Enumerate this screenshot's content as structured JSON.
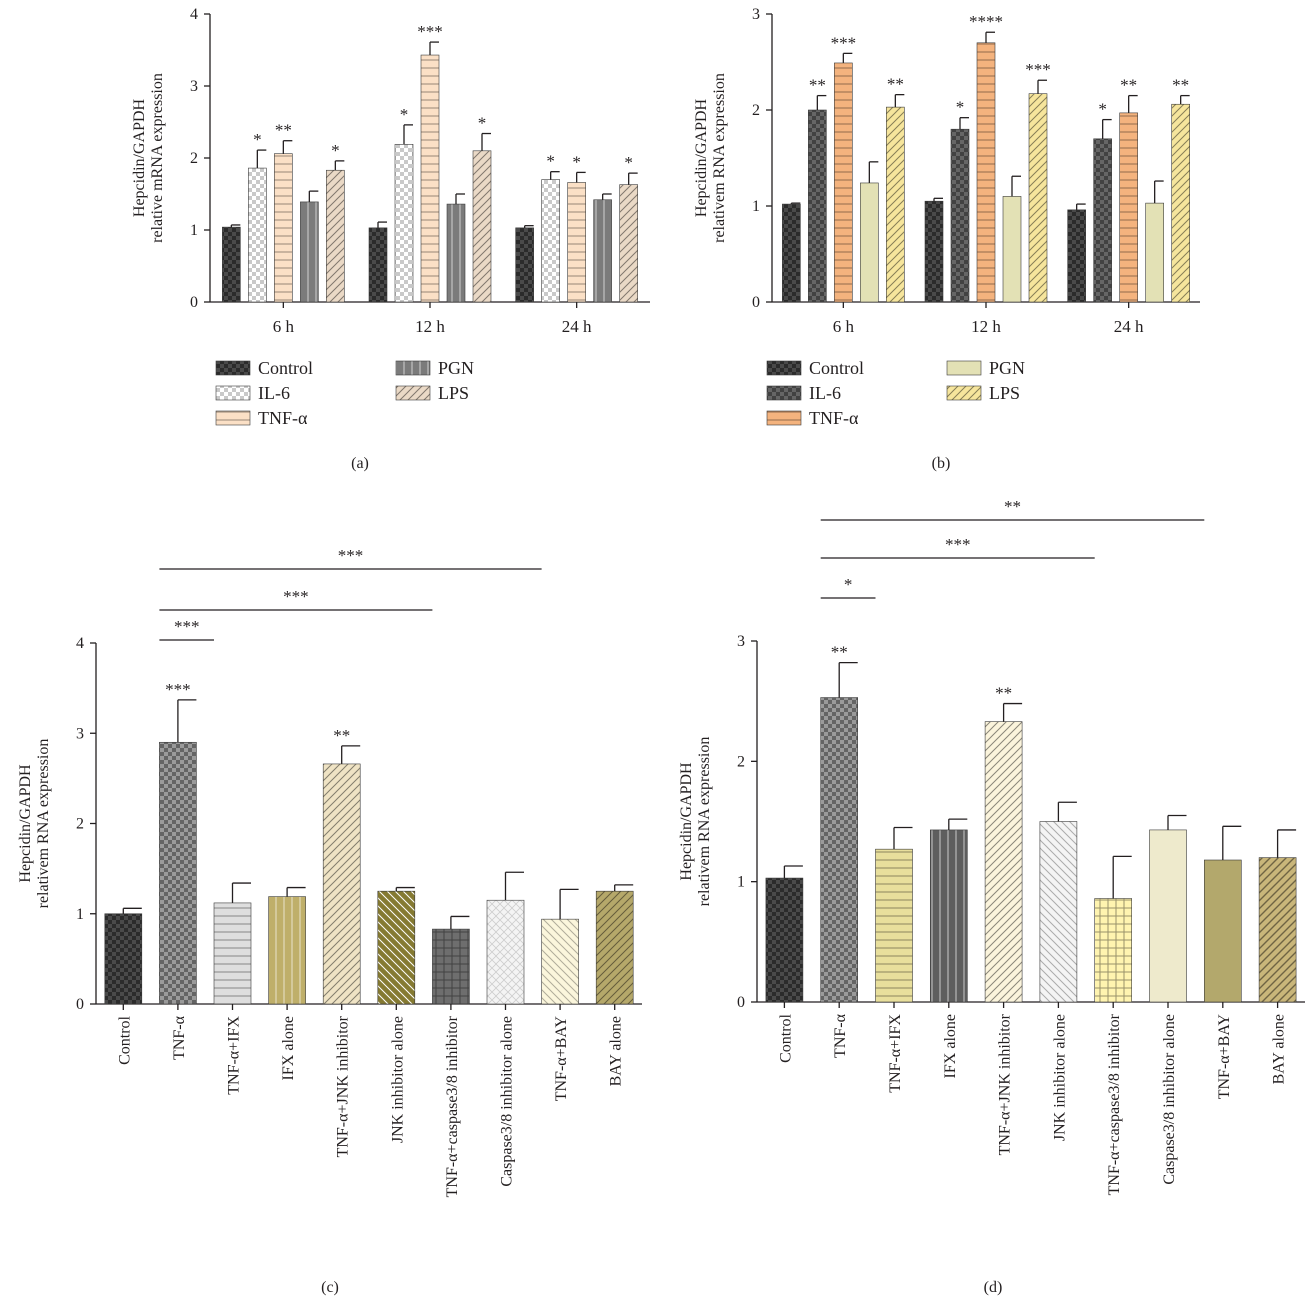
{
  "figure": {
    "panel_labels": [
      "(a)",
      "(b)",
      "(c)",
      "(d)"
    ]
  },
  "chart_data": [
    {
      "panel": "(a)",
      "type": "bar",
      "ylabel": "Hepcidin/GAPDH\nrelative mRNA expression",
      "ylim": [
        0,
        4
      ],
      "yticks": [
        "0",
        "1",
        "2",
        "3",
        "4"
      ],
      "categories": [
        "6 h",
        "12 h",
        "24 h"
      ],
      "legend_position": "bottom",
      "series": [
        {
          "name": "Control",
          "values": [
            1.04,
            1.03,
            1.03
          ],
          "errors": [
            0.03,
            0.08,
            0.03
          ],
          "sig": [
            "",
            "",
            ""
          ],
          "color": "#2b2b2b",
          "pattern": "check-dark"
        },
        {
          "name": "IL-6",
          "values": [
            1.86,
            2.19,
            1.7
          ],
          "errors": [
            0.25,
            0.27,
            0.11
          ],
          "sig": [
            "*",
            "*",
            "*"
          ],
          "color": "#c9c9c9",
          "pattern": "check-light"
        },
        {
          "name": "TNF-α",
          "values": [
            2.06,
            3.43,
            1.66
          ],
          "errors": [
            0.18,
            0.18,
            0.14
          ],
          "sig": [
            "**",
            "***",
            "*"
          ],
          "color": "#fbe0c6",
          "pattern": "hlines"
        },
        {
          "name": "PGN",
          "values": [
            1.39,
            1.36,
            1.42
          ],
          "errors": [
            0.15,
            0.14,
            0.08
          ],
          "sig": [
            "",
            "",
            ""
          ],
          "color": "#7b7b7b",
          "pattern": "vlines"
        },
        {
          "name": "LPS",
          "values": [
            1.83,
            2.1,
            1.63
          ],
          "errors": [
            0.13,
            0.24,
            0.16
          ],
          "sig": [
            "*",
            "*",
            "*"
          ],
          "color": "#ead9c6",
          "pattern": "diag"
        }
      ]
    },
    {
      "panel": "(b)",
      "type": "bar",
      "ylabel": "Hepcidin/GAPDH\nrelativem RNA expression",
      "ylim": [
        0,
        3
      ],
      "yticks": [
        "0",
        "1",
        "2",
        "3"
      ],
      "categories": [
        "6 h",
        "12 h",
        "24 h"
      ],
      "legend_position": "bottom",
      "series": [
        {
          "name": "Control",
          "values": [
            1.02,
            1.05,
            0.96
          ],
          "errors": [
            0.01,
            0.03,
            0.06
          ],
          "sig": [
            "",
            "",
            ""
          ],
          "color": "#2b2b2b",
          "pattern": "check-dark"
        },
        {
          "name": "IL-6",
          "values": [
            2.0,
            1.8,
            1.7
          ],
          "errors": [
            0.15,
            0.12,
            0.2
          ],
          "sig": [
            "**",
            "*",
            "*"
          ],
          "color": "#666666",
          "pattern": "check-mid"
        },
        {
          "name": "TNF-α",
          "values": [
            2.49,
            2.7,
            1.97
          ],
          "errors": [
            0.1,
            0.11,
            0.18
          ],
          "sig": [
            "***",
            "****",
            "**"
          ],
          "color": "#f4b37e",
          "pattern": "hlines"
        },
        {
          "name": "PGN",
          "values": [
            1.24,
            1.1,
            1.03
          ],
          "errors": [
            0.22,
            0.21,
            0.23
          ],
          "sig": [
            "",
            "",
            ""
          ],
          "color": "#e3e1b5",
          "pattern": "solid"
        },
        {
          "name": "LPS",
          "values": [
            2.03,
            2.17,
            2.06
          ],
          "errors": [
            0.13,
            0.14,
            0.09
          ],
          "sig": [
            "**",
            "***",
            "**"
          ],
          "color": "#f6e59c",
          "pattern": "diag"
        }
      ]
    },
    {
      "panel": "(c)",
      "type": "bar",
      "ylabel": "Hepcidin/GAPDH\nrelativem RNA expression",
      "ylim": [
        0,
        4
      ],
      "yticks": [
        "0",
        "1",
        "2",
        "3",
        "4"
      ],
      "categories": [
        "Control",
        "TNF-α",
        "TNF-α+IFX",
        "IFX alone",
        "TNF-α+JNK inhibitor",
        "JNK inhibitor alone",
        "TNF-α+caspase3/8 inhibitor",
        "Caspase3/8 inhibitor alone",
        "TNF-α+BAY",
        "BAY alone"
      ],
      "values": [
        1.0,
        2.9,
        1.12,
        1.19,
        2.66,
        1.25,
        0.83,
        1.15,
        0.94,
        1.25
      ],
      "errors": [
        0.06,
        0.47,
        0.22,
        0.1,
        0.2,
        0.04,
        0.14,
        0.31,
        0.33,
        0.07
      ],
      "sig": [
        "",
        "***",
        "",
        "",
        "**",
        "",
        "",
        "",
        "",
        ""
      ],
      "bar_colors": [
        "#2b2b2b",
        "#9a9a9a",
        "#dedede",
        "#bfaf6a",
        "#efe3c4",
        "#857a32",
        "#6e6e6e",
        "#f4f4f4",
        "#fbf6dc",
        "#b5a86a"
      ],
      "bar_patterns": [
        "check-dark",
        "check-mid",
        "hlines",
        "vlines",
        "diag",
        "diag-back",
        "grid",
        "diamond",
        "diag-back-light",
        "diag"
      ],
      "comparisons": [
        {
          "from": 1,
          "to": 2,
          "label": "***"
        },
        {
          "from": 1,
          "to": 6,
          "label": "***"
        },
        {
          "from": 1,
          "to": 8,
          "label": "***"
        }
      ]
    },
    {
      "panel": "(d)",
      "type": "bar",
      "ylabel": "Hepcidin/GAPDH\nrelativem RNA expression",
      "ylim": [
        0,
        3
      ],
      "yticks": [
        "0",
        "1",
        "2",
        "3"
      ],
      "categories": [
        "Control",
        "TNF-α",
        "TNF-α+IFX",
        "IFX alone",
        "TNF-α+JNK inhibitor",
        "JNK inhibitor alone",
        "TNF-α+caspase3/8 inhibitor",
        "Caspase3/8 inhibitor alone",
        "TNF-α+BAY",
        "BAY alone"
      ],
      "values": [
        1.03,
        2.53,
        1.27,
        1.43,
        2.33,
        1.5,
        0.86,
        1.43,
        1.18,
        1.2
      ],
      "errors": [
        0.1,
        0.29,
        0.18,
        0.09,
        0.15,
        0.16,
        0.35,
        0.12,
        0.28,
        0.23
      ],
      "sig": [
        "",
        "**",
        "",
        "",
        "**",
        "",
        "",
        "",
        "",
        ""
      ],
      "bar_colors": [
        "#2b2b2b",
        "#9a9a9a",
        "#e8df9c",
        "#5e5e5e",
        "#fbf4dc",
        "#f4f4f4",
        "#fff4b0",
        "#eeeacc",
        "#b3a86c",
        "#c9b67a"
      ],
      "bar_patterns": [
        "check-dark",
        "check-mid",
        "hlines",
        "vlines",
        "diag",
        "diag-back-light",
        "grid",
        "solid",
        "solid",
        "diag-bold"
      ],
      "comparisons": [
        {
          "from": 1,
          "to": 2,
          "label": "*"
        },
        {
          "from": 1,
          "to": 6,
          "label": "***"
        },
        {
          "from": 1,
          "to": 8,
          "label": "**"
        }
      ]
    }
  ]
}
